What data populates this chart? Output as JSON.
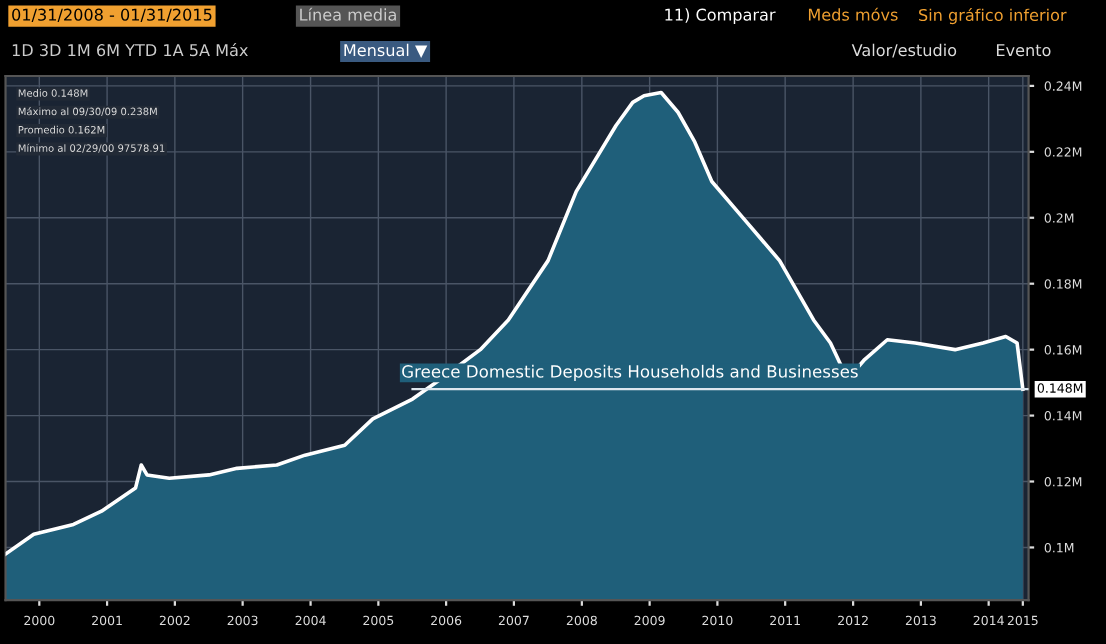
{
  "chart_data": {
    "type": "area",
    "x": [
      "2000-01",
      "2000-06",
      "2001-01",
      "2001-06",
      "2001-12",
      "2002-01",
      "2002-02",
      "2002-06",
      "2003-01",
      "2003-06",
      "2004-01",
      "2004-06",
      "2005-01",
      "2005-06",
      "2006-01",
      "2006-06",
      "2007-01",
      "2007-06",
      "2008-01",
      "2008-06",
      "2009-01",
      "2009-04",
      "2009-06",
      "2009-09",
      "2009-12",
      "2010-03",
      "2010-06",
      "2010-12",
      "2011-06",
      "2011-12",
      "2012-03",
      "2012-06",
      "2012-09",
      "2013-01",
      "2013-06",
      "2014-01",
      "2014-06",
      "2014-10",
      "2014-12",
      "2015-01"
    ],
    "series": [
      {
        "name": "Greece Domestic Deposits Households and Businesses",
        "color": "#1f5f7a",
        "values": [
          0.098,
          0.104,
          0.107,
          0.111,
          0.118,
          0.125,
          0.122,
          0.121,
          0.122,
          0.124,
          0.125,
          0.128,
          0.131,
          0.139,
          0.145,
          0.151,
          0.16,
          0.169,
          0.187,
          0.208,
          0.228,
          0.235,
          0.237,
          0.238,
          0.232,
          0.223,
          0.211,
          0.199,
          0.187,
          0.169,
          0.162,
          0.151,
          0.157,
          0.163,
          0.162,
          0.16,
          0.162,
          0.164,
          0.162,
          0.148
        ]
      }
    ],
    "xlim": [
      "2000-01",
      "2015-02"
    ],
    "xticks": [
      {
        "value": "2000-07",
        "label": "2000"
      },
      {
        "value": "2001-07",
        "label": "2001"
      },
      {
        "value": "2002-07",
        "label": "2002"
      },
      {
        "value": "2003-07",
        "label": "2003"
      },
      {
        "value": "2004-07",
        "label": "2004"
      },
      {
        "value": "2005-07",
        "label": "2005"
      },
      {
        "value": "2006-07",
        "label": "2006"
      },
      {
        "value": "2007-07",
        "label": "2007"
      },
      {
        "value": "2008-07",
        "label": "2008"
      },
      {
        "value": "2009-07",
        "label": "2009"
      },
      {
        "value": "2010-07",
        "label": "2010"
      },
      {
        "value": "2011-07",
        "label": "2011"
      },
      {
        "value": "2012-07",
        "label": "2012"
      },
      {
        "value": "2013-07",
        "label": "2013"
      },
      {
        "value": "2014-07",
        "label": "2014"
      },
      {
        "value": "2015-01",
        "label": "2015"
      }
    ],
    "ylim": [
      0.084,
      0.243
    ],
    "yticks": [
      {
        "value": 0.1,
        "label": "0.1M"
      },
      {
        "value": 0.12,
        "label": "0.12M"
      },
      {
        "value": 0.14,
        "label": "0.14M"
      },
      {
        "value": 0.16,
        "label": "0.16M"
      },
      {
        "value": 0.18,
        "label": "0.18M"
      },
      {
        "value": 0.2,
        "label": "0.2M"
      },
      {
        "value": 0.22,
        "label": "0.22M"
      },
      {
        "value": 0.24,
        "label": "0.24M"
      }
    ],
    "grid": true,
    "ref_lines": [
      {
        "axis": "y",
        "value": 0.148,
        "label": "0.148M",
        "color": "#dce6ee"
      }
    ],
    "annotations": [
      "01/31/2008 - 01/31/2015",
      "Línea media",
      "11) Comparar",
      "Meds móvs",
      "Sin gráfico inferior",
      "1D 3D 1M 6M YTD 1A 5A Máx",
      "Mensual ▼",
      "Valor/estudio",
      "Evento",
      "Medio 0.148M",
      "Máximo al 09/30/09 0.238M",
      "Promedio 0.162M",
      "Mínimo al 02/29/00 97578.91"
    ]
  }
}
